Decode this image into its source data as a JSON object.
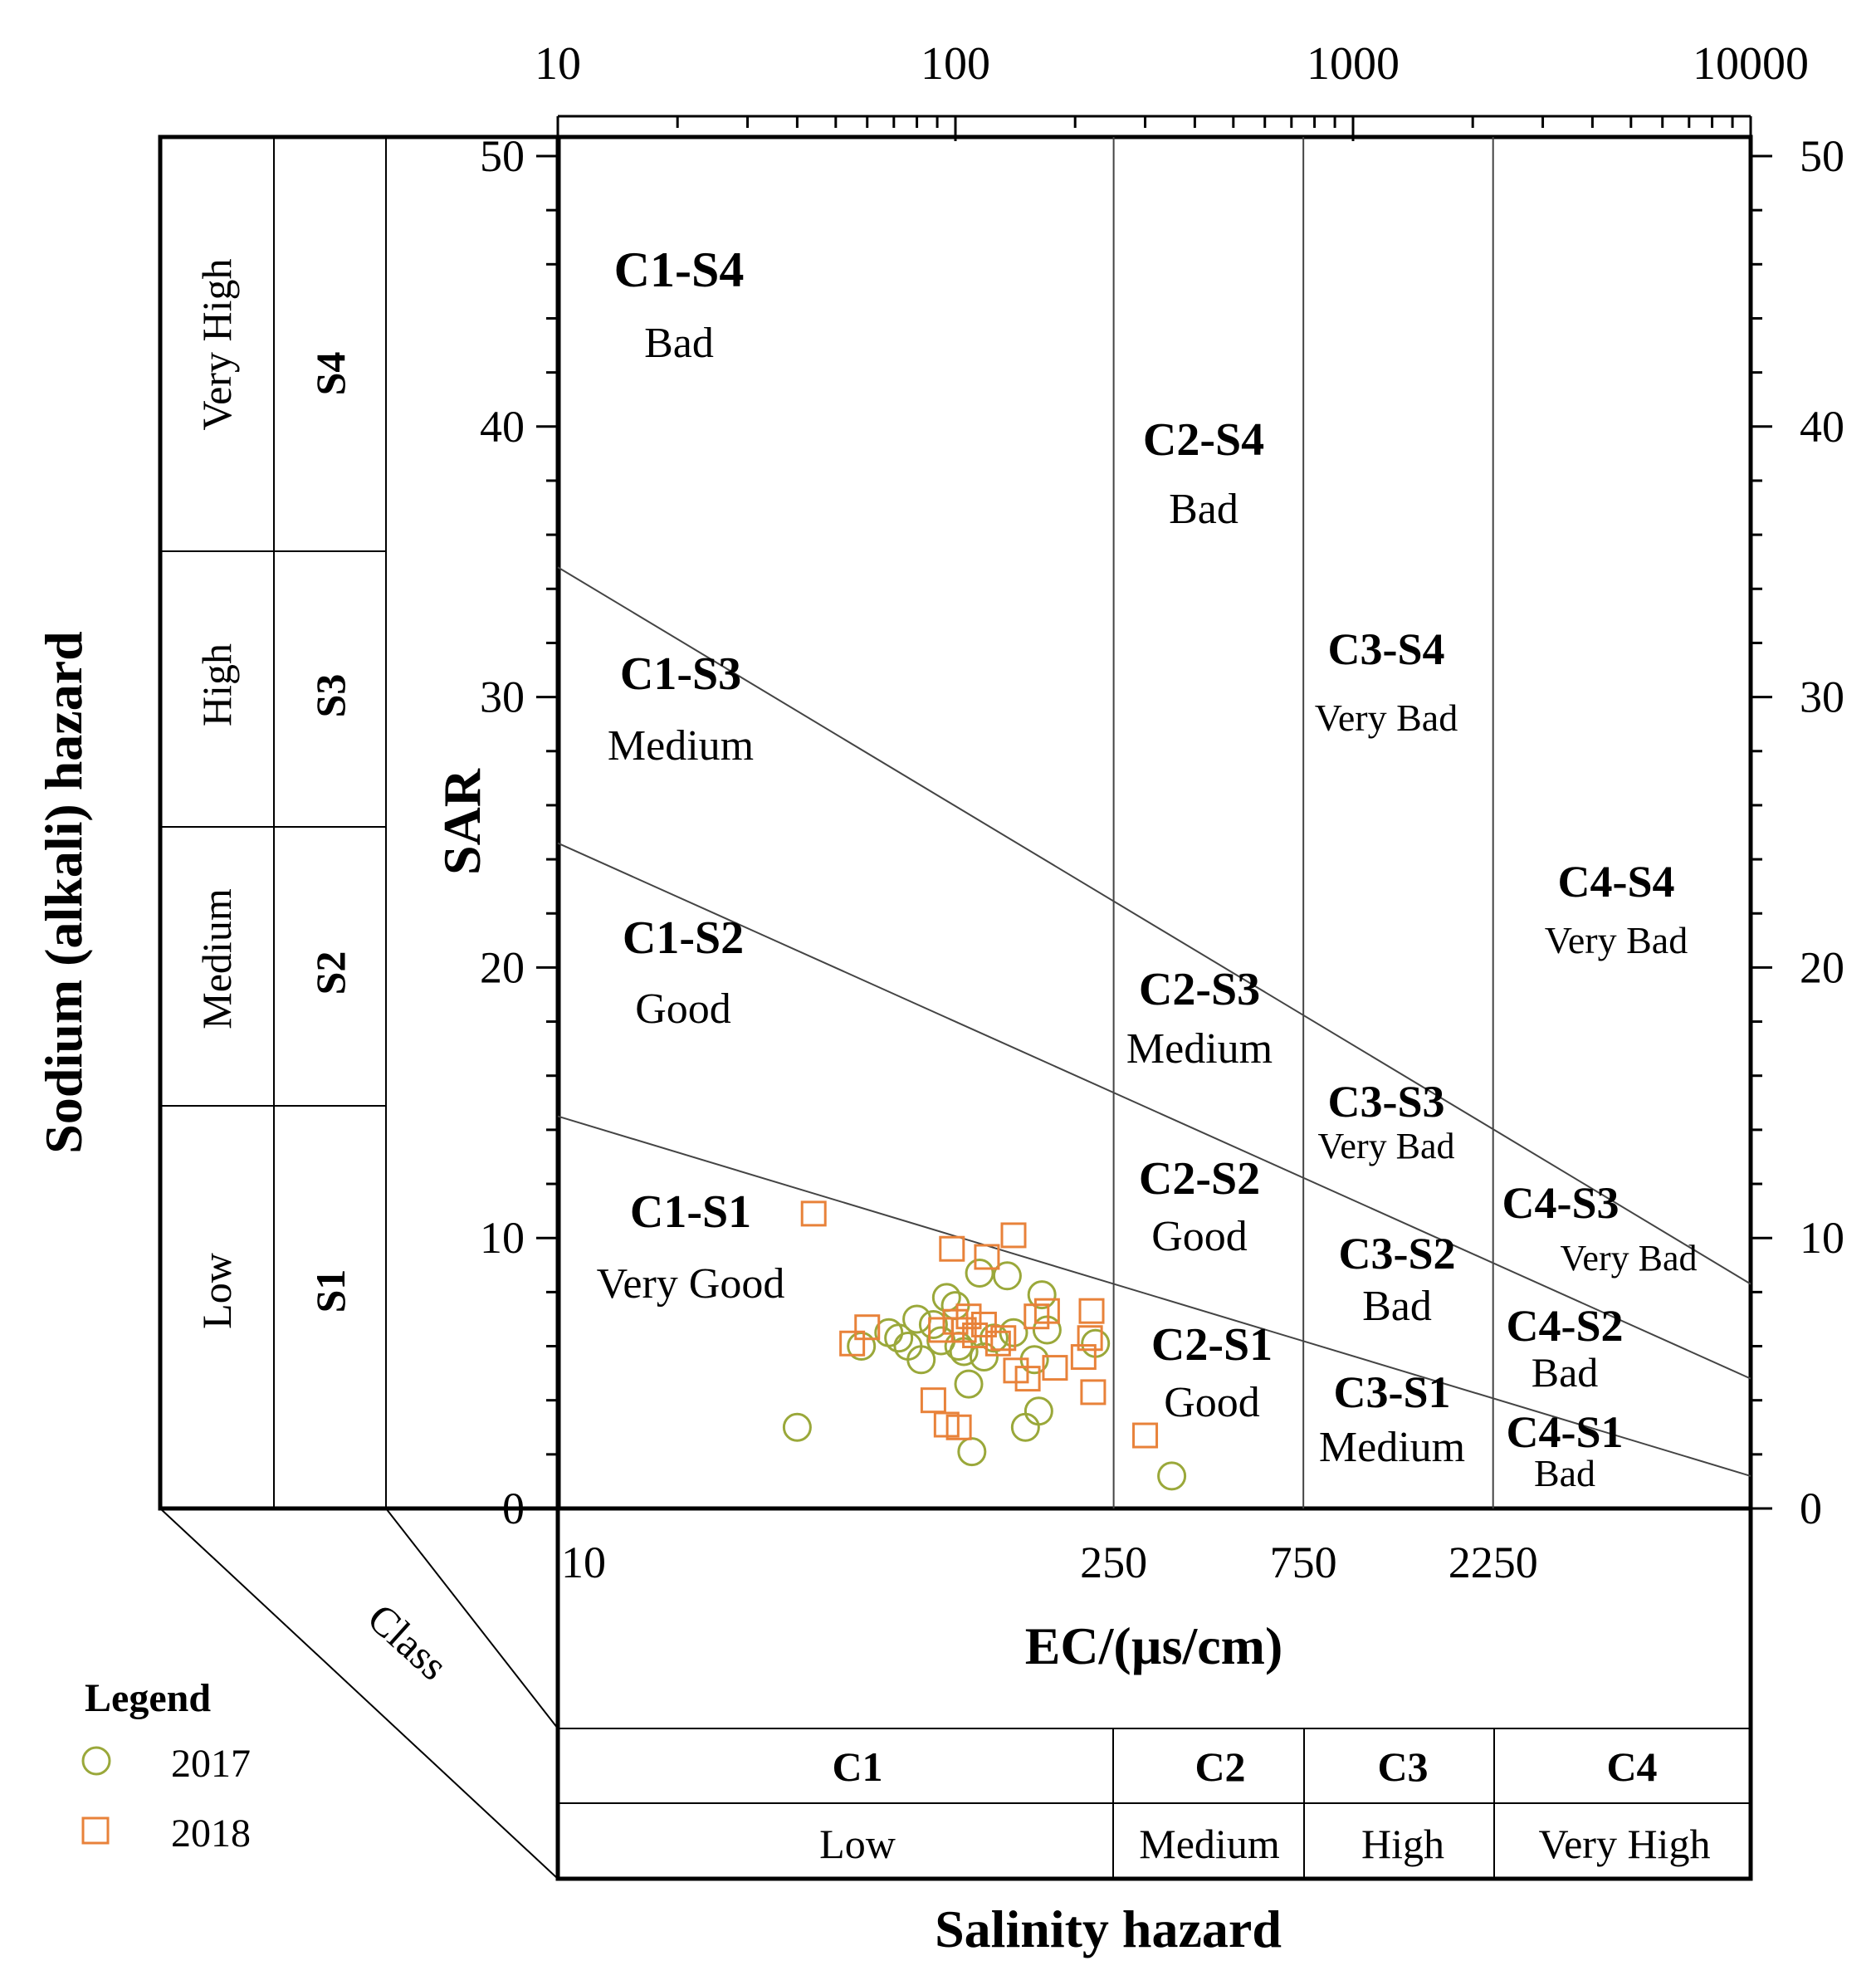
{
  "chart_data": {
    "type": "scatter",
    "title": "",
    "xlabel": "EC/(µs/cm)",
    "ylabel": "SAR",
    "x_scale": "log",
    "xlim": [
      10,
      10000
    ],
    "ylim": [
      0,
      50
    ],
    "top_axis_ticks": [
      "10",
      "100",
      "1000",
      "10000"
    ],
    "y_ticks": [
      "0",
      "10",
      "20",
      "30",
      "40",
      "50"
    ],
    "bottom_axis_ticks": [
      {
        "value": 10,
        "label": "10"
      },
      {
        "value": 250,
        "label": "250"
      },
      {
        "value": 750,
        "label": "750"
      },
      {
        "value": 2250,
        "label": "2250"
      }
    ],
    "salinity_class_boundaries": [
      250,
      750,
      2250
    ],
    "boundary_lines": [
      {
        "name": "S1/S2",
        "x": [
          10,
          10000
        ],
        "y": [
          14.5,
          1.2
        ]
      },
      {
        "name": "S2/S3",
        "x": [
          10,
          10000
        ],
        "y": [
          24.6,
          4.8
        ]
      },
      {
        "name": "S3/S4",
        "x": [
          10,
          10000
        ],
        "y": [
          34.8,
          8.3
        ]
      }
    ],
    "zone_labels": [
      {
        "code": "C1-S4",
        "quality": "Bad"
      },
      {
        "code": "C1-S3",
        "quality": "Medium"
      },
      {
        "code": "C1-S2",
        "quality": "Good"
      },
      {
        "code": "C1-S1",
        "quality": "Very Good"
      },
      {
        "code": "C2-S4",
        "quality": "Bad"
      },
      {
        "code": "C2-S3",
        "quality": "Medium"
      },
      {
        "code": "C2-S2",
        "quality": "Good"
      },
      {
        "code": "C2-S1",
        "quality": "Good"
      },
      {
        "code": "C3-S4",
        "quality": "Very Bad"
      },
      {
        "code": "C3-S3",
        "quality": "Very Bad"
      },
      {
        "code": "C3-S2",
        "quality": "Bad"
      },
      {
        "code": "C3-S1",
        "quality": "Medium"
      },
      {
        "code": "C4-S4",
        "quality": "Very Bad"
      },
      {
        "code": "C4-S3",
        "quality": "Very Bad"
      },
      {
        "code": "C4-S2",
        "quality": "Bad"
      },
      {
        "code": "C4-S1",
        "quality": "Bad"
      }
    ],
    "series": [
      {
        "name": "2017",
        "marker": "circle",
        "color": "#9aa83a",
        "points": [
          {
            "x": 40,
            "y": 3.0
          },
          {
            "x": 58,
            "y": 6.0
          },
          {
            "x": 68,
            "y": 6.5
          },
          {
            "x": 72,
            "y": 6.3
          },
          {
            "x": 76,
            "y": 6.0
          },
          {
            "x": 80,
            "y": 7.0
          },
          {
            "x": 82,
            "y": 5.5
          },
          {
            "x": 88,
            "y": 6.8
          },
          {
            "x": 92,
            "y": 6.2
          },
          {
            "x": 95,
            "y": 7.8
          },
          {
            "x": 100,
            "y": 7.5
          },
          {
            "x": 102,
            "y": 6.0
          },
          {
            "x": 105,
            "y": 5.8
          },
          {
            "x": 108,
            "y": 4.6
          },
          {
            "x": 110,
            "y": 2.1
          },
          {
            "x": 115,
            "y": 8.7
          },
          {
            "x": 118,
            "y": 5.6
          },
          {
            "x": 125,
            "y": 6.3
          },
          {
            "x": 135,
            "y": 8.6
          },
          {
            "x": 140,
            "y": 6.5
          },
          {
            "x": 150,
            "y": 3.0
          },
          {
            "x": 158,
            "y": 5.5
          },
          {
            "x": 162,
            "y": 3.6
          },
          {
            "x": 165,
            "y": 7.9
          },
          {
            "x": 170,
            "y": 6.6
          },
          {
            "x": 225,
            "y": 6.1
          },
          {
            "x": 350,
            "y": 1.2
          }
        ]
      },
      {
        "name": "2018",
        "marker": "square",
        "color": "#e8823a",
        "points": [
          {
            "x": 44,
            "y": 10.9
          },
          {
            "x": 55,
            "y": 6.1
          },
          {
            "x": 60,
            "y": 6.7
          },
          {
            "x": 88,
            "y": 4.0
          },
          {
            "x": 92,
            "y": 6.6
          },
          {
            "x": 95,
            "y": 3.1
          },
          {
            "x": 98,
            "y": 9.6
          },
          {
            "x": 100,
            "y": 6.9
          },
          {
            "x": 102,
            "y": 3.0
          },
          {
            "x": 105,
            "y": 6.6
          },
          {
            "x": 108,
            "y": 7.1
          },
          {
            "x": 112,
            "y": 6.4
          },
          {
            "x": 118,
            "y": 6.8
          },
          {
            "x": 120,
            "y": 9.3
          },
          {
            "x": 128,
            "y": 6.1
          },
          {
            "x": 132,
            "y": 6.3
          },
          {
            "x": 140,
            "y": 10.1
          },
          {
            "x": 142,
            "y": 5.1
          },
          {
            "x": 152,
            "y": 4.8
          },
          {
            "x": 160,
            "y": 7.1
          },
          {
            "x": 170,
            "y": 7.3
          },
          {
            "x": 178,
            "y": 5.2
          },
          {
            "x": 210,
            "y": 5.6
          },
          {
            "x": 218,
            "y": 6.3
          },
          {
            "x": 220,
            "y": 7.3
          },
          {
            "x": 222,
            "y": 4.3
          },
          {
            "x": 300,
            "y": 2.7
          }
        ]
      }
    ],
    "legend": {
      "title": "Legend",
      "position": "bottom-left"
    }
  },
  "left_panel": {
    "title": "Sodium (alkali) hazard",
    "rows": [
      {
        "level": "Very High",
        "code": "S4"
      },
      {
        "level": "High",
        "code": "S3"
      },
      {
        "level": "Medium",
        "code": "S2"
      },
      {
        "level": "Low",
        "code": "S1"
      }
    ]
  },
  "bottom_panel": {
    "title": "Salinity hazard",
    "class_label": "Class",
    "columns": [
      {
        "code": "C1",
        "level": "Low"
      },
      {
        "code": "C2",
        "level": "Medium"
      },
      {
        "code": "C3",
        "level": "High"
      },
      {
        "code": "C4",
        "level": "Very High"
      }
    ]
  }
}
